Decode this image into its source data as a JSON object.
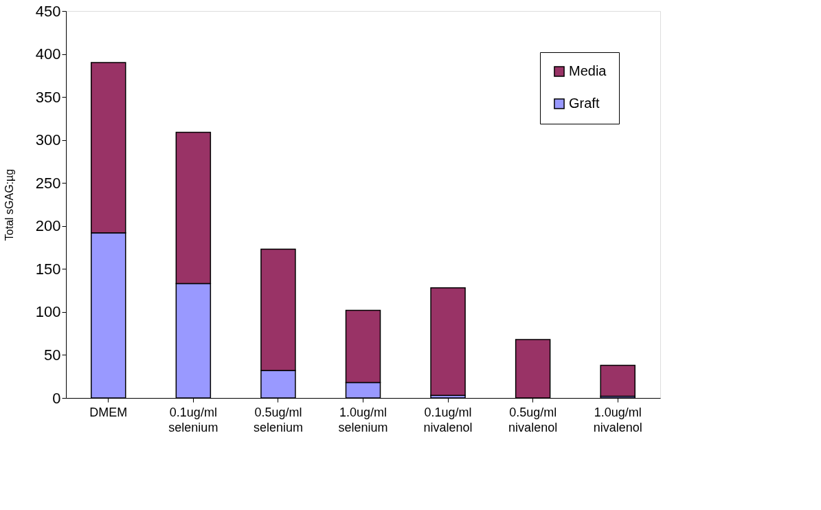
{
  "chart_data": {
    "type": "bar",
    "stacked": true,
    "ylabel": "Total sGAG:µg",
    "categories": [
      "DMEM",
      "0.1ug/ml selenium",
      "0.5ug/ml selenium",
      "1.0ug/ml selenium",
      "0.1ug/ml nivalenol",
      "0.5ug/ml nivalenol",
      "1.0ug/ml nivalenol"
    ],
    "series": [
      {
        "name": "Graft",
        "color": "#9999ff",
        "values": [
          192,
          133,
          32,
          18,
          3,
          0,
          2
        ]
      },
      {
        "name": "Media",
        "color": "#993366",
        "values": [
          198,
          176,
          141,
          84,
          125,
          68,
          36
        ]
      }
    ],
    "ylim": [
      0,
      450
    ],
    "yticks": [
      0,
      50,
      100,
      150,
      200,
      250,
      300,
      350,
      400,
      450
    ],
    "grid": false,
    "legend": "top right"
  }
}
